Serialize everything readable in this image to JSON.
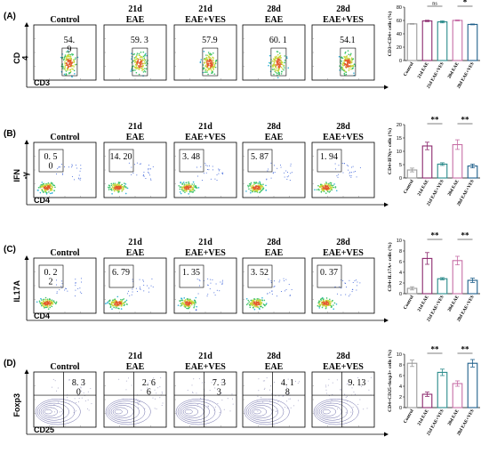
{
  "panels": [
    {
      "letter": "(A)",
      "groups": [
        {
          "day": "",
          "cond": "Control",
          "value": "54.\n9"
        },
        {
          "day": "21d",
          "cond": "EAE",
          "value": "59. 3"
        },
        {
          "day": "21d",
          "cond": "EAE+VES",
          "value": "57.9"
        },
        {
          "day": "28d",
          "cond": "EAE",
          "value": "60. 1"
        },
        {
          "day": "28d",
          "cond": "EAE+VES",
          "value": "54.1"
        }
      ],
      "y_axis_label": "CD\n4",
      "x_axis_label": "CD3",
      "style": "dense",
      "chart_ylabel": "CD3+CD4+ cells (%)",
      "chart_ylim": [
        0,
        80
      ],
      "chart_yticks": [
        "0",
        "20",
        "40",
        "60",
        "80"
      ],
      "chart_values": [
        54.9,
        59.3,
        57.9,
        60.1,
        54.1
      ],
      "chart_errors": [
        0.6,
        1.0,
        1.5,
        0.8,
        0.6
      ],
      "sig": [
        {
          "from": 1,
          "to": 2,
          "label": "ns"
        },
        {
          "from": 3,
          "to": 4,
          "label": "*"
        }
      ]
    },
    {
      "letter": "(B)",
      "groups": [
        {
          "day": "",
          "cond": "Control",
          "value": "0. 5\n0"
        },
        {
          "day": "21d",
          "cond": "EAE",
          "value": "14. 20"
        },
        {
          "day": "21d",
          "cond": "EAE+VES",
          "value": "3. 48"
        },
        {
          "day": "28d",
          "cond": "EAE",
          "value": "5. 87"
        },
        {
          "day": "28d",
          "cond": "EAE+VES",
          "value": "1. 94"
        }
      ],
      "y_axis_label": "IFN\n-γ",
      "x_axis_label": "CD4",
      "style": "low",
      "chart_ylabel": "CD4+IFNγ+ cells (%)",
      "chart_ylim": [
        0,
        20
      ],
      "chart_yticks": [
        "0",
        "5",
        "10",
        "15",
        "20"
      ],
      "chart_values": [
        3.0,
        12.0,
        5.2,
        12.5,
        4.5
      ],
      "chart_errors": [
        0.7,
        1.4,
        0.5,
        1.8,
        0.7
      ],
      "sig": [
        {
          "from": 1,
          "to": 2,
          "label": "**"
        },
        {
          "from": 3,
          "to": 4,
          "label": "**"
        }
      ]
    },
    {
      "letter": "(C)",
      "groups": [
        {
          "day": "",
          "cond": "Control",
          "value": "0. 2\n2"
        },
        {
          "day": "21d",
          "cond": "EAE",
          "value": "6. 79"
        },
        {
          "day": "21d",
          "cond": "EAE+VES",
          "value": "1. 35"
        },
        {
          "day": "28d",
          "cond": "EAE",
          "value": "3. 52"
        },
        {
          "day": "28d",
          "cond": "EAE+VES",
          "value": "0. 37"
        }
      ],
      "y_axis_label": "IL17A",
      "x_axis_label": "CD4",
      "style": "low",
      "chart_ylabel": "CD4+IL17A+ cells (%)",
      "chart_ylim": [
        0,
        10
      ],
      "chart_yticks": [
        "0",
        "2",
        "4",
        "6",
        "8",
        "10"
      ],
      "chart_values": [
        1.0,
        6.6,
        2.8,
        6.2,
        2.5
      ],
      "chart_errors": [
        0.3,
        1.1,
        0.2,
        0.8,
        0.4
      ],
      "sig": [
        {
          "from": 1,
          "to": 2,
          "label": "**"
        },
        {
          "from": 3,
          "to": 4,
          "label": "**"
        }
      ]
    },
    {
      "letter": "(D)",
      "groups": [
        {
          "day": "",
          "cond": "Control",
          "value": "8. 3\n0"
        },
        {
          "day": "21d",
          "cond": "EAE",
          "value": "2. 6\n6"
        },
        {
          "day": "21d",
          "cond": "EAE+VES",
          "value": "7. 3\n3"
        },
        {
          "day": "28d",
          "cond": "EAE",
          "value": "4. 1\n8"
        },
        {
          "day": "28d",
          "cond": "EAE+VES",
          "value": "9. 13"
        }
      ],
      "y_axis_label": "Foxp3",
      "x_axis_label": "CD25",
      "style": "contour",
      "chart_ylabel": "CD4+CD25+foxp3+ cells (%)",
      "chart_ylim": [
        0,
        10
      ],
      "chart_yticks": [
        "0",
        "2",
        "4",
        "6",
        "8",
        "10"
      ],
      "chart_values": [
        8.3,
        2.5,
        6.6,
        4.5,
        8.3
      ],
      "chart_errors": [
        0.6,
        0.4,
        0.6,
        0.5,
        0.7
      ],
      "sig": [
        {
          "from": 1,
          "to": 2,
          "label": "**"
        },
        {
          "from": 3,
          "to": 4,
          "label": "**"
        }
      ]
    }
  ],
  "bar_labels": [
    "Control",
    "21d EAE",
    "21d EAE+VES",
    "28d EAE",
    "28d EAE+VES"
  ],
  "bar_colors": [
    "#9a9a9a",
    "#8c2a6e",
    "#2a8a8a",
    "#c76ea6",
    "#1f5f8a"
  ]
}
